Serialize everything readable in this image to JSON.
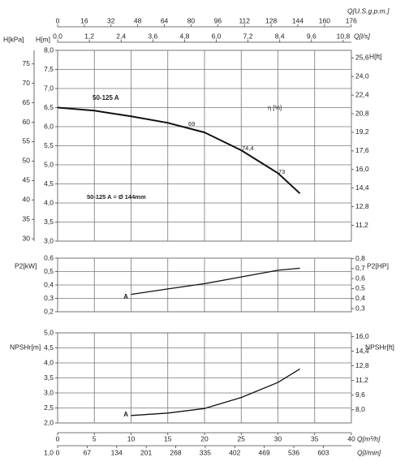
{
  "chart_data": [
    {
      "type": "line",
      "ylabel": "H[m]",
      "ylim": [
        3,
        8
      ],
      "yticks": [
        {
          "value": 3,
          "label": "3,0"
        },
        {
          "value": 3.5,
          "label": "3,5"
        },
        {
          "value": 4,
          "label": "4,0"
        },
        {
          "value": 4.5,
          "label": "4,5"
        },
        {
          "value": 5,
          "label": "5,0"
        },
        {
          "value": 5.5,
          "label": "5,5"
        },
        {
          "value": 6,
          "label": "6,0"
        },
        {
          "value": 6.5,
          "label": "6,5"
        },
        {
          "value": 7,
          "label": "7,0"
        },
        {
          "value": 7.5,
          "label": "7,5"
        },
        {
          "value": 8,
          "label": "8,0"
        }
      ],
      "y2label": "H[ft]",
      "y2lim": [
        9.84,
        26.25
      ],
      "y2ticks": [
        {
          "value": 11.2,
          "label": "11,2"
        },
        {
          "value": 12.8,
          "label": "12,8"
        },
        {
          "value": 14.4,
          "label": "14,4"
        },
        {
          "value": 16,
          "label": "16,0"
        },
        {
          "value": 17.6,
          "label": "17,6"
        },
        {
          "value": 19.2,
          "label": "19,2"
        },
        {
          "value": 20.8,
          "label": "20,8"
        },
        {
          "value": 22.4,
          "label": "22,4"
        },
        {
          "value": 24,
          "label": "24,0"
        },
        {
          "value": 25.6,
          "label": "25,6"
        }
      ],
      "y3label": "H[kPa]",
      "y3lim": [
        29.4,
        78.5
      ],
      "y3ticks": [
        30,
        35,
        40,
        45,
        50,
        55,
        60,
        65,
        70,
        75
      ],
      "xlim": [
        0,
        40
      ],
      "top_axes": [
        {
          "label": "Q[U.S.g.p.m.]",
          "lim": [
            0,
            176.1
          ],
          "ticks": [
            0,
            16,
            32,
            48,
            64,
            80,
            96,
            112,
            128,
            144,
            160,
            176
          ]
        },
        {
          "label": "Q[l/s]",
          "lim": [
            0,
            11.11
          ],
          "ticks": [
            {
              "value": 0,
              "label": "0,0"
            },
            {
              "value": 1.2,
              "label": "1,2"
            },
            {
              "value": 2.4,
              "label": "2,4"
            },
            {
              "value": 3.6,
              "label": "3,6"
            },
            {
              "value": 4.8,
              "label": "4,8"
            },
            {
              "value": 6,
              "label": "6,0"
            },
            {
              "value": 7.2,
              "label": "7,2"
            },
            {
              "value": 8.4,
              "label": "8,4"
            },
            {
              "value": 9.6,
              "label": "9,6"
            },
            {
              "value": 10.8,
              "label": "10,8"
            }
          ]
        }
      ],
      "series": [
        {
          "name": "50-125 A",
          "x": [
            0,
            5,
            10,
            15,
            20,
            25,
            30,
            33
          ],
          "values": [
            6.5,
            6.42,
            6.27,
            6.1,
            5.85,
            5.38,
            4.78,
            4.25
          ]
        }
      ],
      "annotations": [
        "η [%]",
        "69",
        "74,4",
        "73",
        "50-125 A = Ø 144mm"
      ]
    },
    {
      "type": "line",
      "ylabel": "P2[kW]",
      "ylim": [
        0.2,
        0.6
      ],
      "yticks": [
        {
          "value": 0.2,
          "label": "0,2"
        },
        {
          "value": 0.3,
          "label": "0,3"
        },
        {
          "value": 0.4,
          "label": "0,4"
        },
        {
          "value": 0.5,
          "label": "0,5"
        },
        {
          "value": 0.6,
          "label": "0,6"
        }
      ],
      "y2label": "P2[HP]",
      "y2lim": [
        0.268,
        0.805
      ],
      "y2ticks": [
        {
          "value": 0.3,
          "label": "0,3"
        },
        {
          "value": 0.4,
          "label": "0,4"
        },
        {
          "value": 0.5,
          "label": "0,5"
        },
        {
          "value": 0.6,
          "label": "0,6"
        },
        {
          "value": 0.7,
          "label": "0,7"
        },
        {
          "value": 0.8,
          "label": "0,8"
        }
      ],
      "xlim": [
        0,
        40
      ],
      "series": [
        {
          "name": "A",
          "x": [
            10,
            15,
            20,
            25,
            30,
            33
          ],
          "values": [
            0.33,
            0.37,
            0.41,
            0.46,
            0.51,
            0.525
          ]
        }
      ]
    },
    {
      "type": "line",
      "ylabel": "NPSHr[m]",
      "ylim": [
        2,
        5
      ],
      "yticks": [
        {
          "value": 2,
          "label": "2,0"
        },
        {
          "value": 2.5,
          "label": "2,5"
        },
        {
          "value": 3,
          "label": "3,0"
        },
        {
          "value": 3.5,
          "label": "3,5"
        },
        {
          "value": 4,
          "label": "4,0"
        },
        {
          "value": 4.5,
          "label": "4,5"
        },
        {
          "value": 5,
          "label": "5,0"
        }
      ],
      "y2label": "NPSHr[ft]",
      "y2lim": [
        6.56,
        16.4
      ],
      "y2ticks": [
        {
          "value": 8,
          "label": "8,0"
        },
        {
          "value": 9.6,
          "label": "9,6"
        },
        {
          "value": 11.2,
          "label": "11,2"
        },
        {
          "value": 12.8,
          "label": "12,8"
        },
        {
          "value": 14.4,
          "label": "14,4"
        },
        {
          "value": 16,
          "label": "16,0"
        }
      ],
      "xlabel": "Q[m³/h]",
      "xlim": [
        0,
        40
      ],
      "xticks": [
        0,
        5,
        10,
        15,
        20,
        25,
        30,
        35,
        40
      ],
      "bottom_axis2": {
        "label": "Q[l/min]",
        "lim": [
          0,
          666.7
        ],
        "ticks": [
          0,
          67,
          134,
          201,
          268,
          335,
          402,
          469,
          536,
          603
        ]
      },
      "corner_label": "1,0",
      "series": [
        {
          "name": "A",
          "x": [
            10,
            15,
            20,
            25,
            30,
            33
          ],
          "values": [
            2.25,
            2.33,
            2.48,
            2.85,
            3.35,
            3.8
          ]
        }
      ]
    }
  ]
}
